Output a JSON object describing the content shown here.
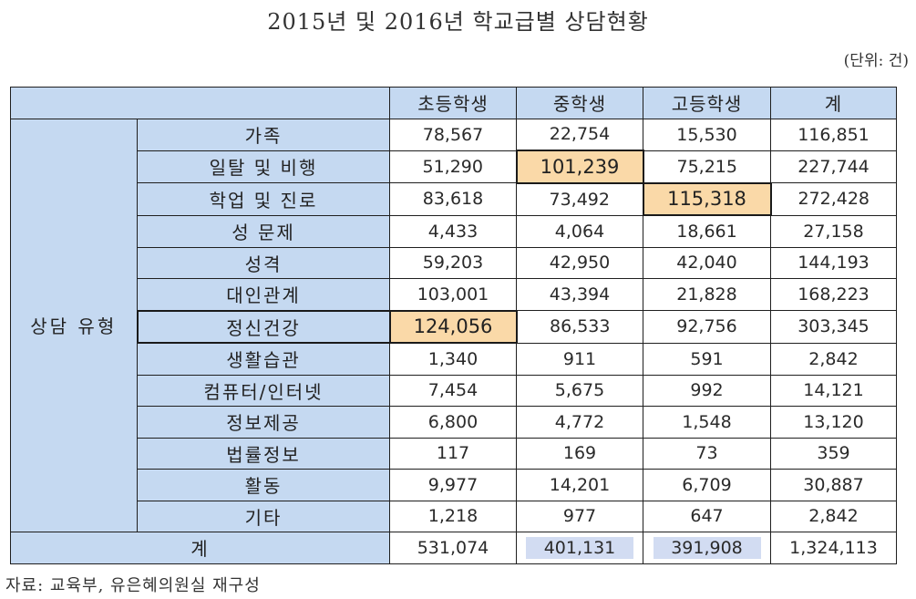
{
  "title": "2015년 및 2016년 학교급별 상담현황",
  "unit": "(단위: 건)",
  "group_label": "상담 유형",
  "total_label": "계",
  "source": "자료: 교육부, 유은혜의원실 재구성",
  "colors": {
    "header": "#c5d9f1",
    "highlight": "#fad9a8",
    "chip": "#d2dcf2"
  },
  "chart_data": {
    "type": "table",
    "title": "2015년 및 2016년 학교급별 상담현황",
    "columns": [
      "초등학생",
      "중학생",
      "고등학생",
      "계"
    ],
    "rows": [
      {
        "label": "가족",
        "values": [
          "78,567",
          "22,754",
          "15,530",
          "116,851"
        ]
      },
      {
        "label": "일탈 및 비행",
        "values": [
          "51,290",
          "101,239",
          "75,215",
          "227,744"
        ]
      },
      {
        "label": "학업 및 진로",
        "values": [
          "83,618",
          "73,492",
          "115,318",
          "272,428"
        ]
      },
      {
        "label": "성 문제",
        "values": [
          "4,433",
          "4,064",
          "18,661",
          "27,158"
        ]
      },
      {
        "label": "성격",
        "values": [
          "59,203",
          "42,950",
          "42,040",
          "144,193"
        ]
      },
      {
        "label": "대인관계",
        "values": [
          "103,001",
          "43,394",
          "21,828",
          "168,223"
        ]
      },
      {
        "label": "정신건강",
        "values": [
          "124,056",
          "86,533",
          "92,756",
          "303,345"
        ]
      },
      {
        "label": "생활습관",
        "values": [
          "1,340",
          "911",
          "591",
          "2,842"
        ]
      },
      {
        "label": "컴퓨터/인터넷",
        "values": [
          "7,454",
          "5,675",
          "992",
          "14,121"
        ]
      },
      {
        "label": "정보제공",
        "values": [
          "6,800",
          "4,772",
          "1,548",
          "13,120"
        ]
      },
      {
        "label": "법률정보",
        "values": [
          "117",
          "169",
          "73",
          "359"
        ]
      },
      {
        "label": "활동",
        "values": [
          "9,977",
          "14,201",
          "6,709",
          "30,887"
        ]
      },
      {
        "label": "기타",
        "values": [
          "1,218",
          "977",
          "647",
          "2,842"
        ]
      }
    ],
    "total": {
      "label": "계",
      "values": [
        "531,074",
        "401,131",
        "391,908",
        "1,324,113"
      ]
    },
    "highlighted_cells": [
      {
        "row": "일탈 및 비행",
        "column": "중학생"
      },
      {
        "row": "학업 및 진로",
        "column": "고등학생"
      },
      {
        "row": "정신건강",
        "column": "초등학생"
      }
    ]
  }
}
